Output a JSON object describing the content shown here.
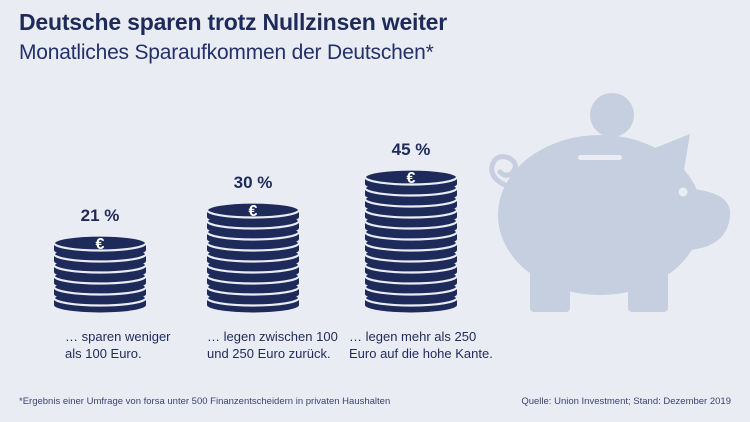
{
  "title": "Deutsche sparen trotz Nullzinsen weiter",
  "subtitle": "Monatliches Sparaufkommen der Deutschen*",
  "coin_symbol": "€",
  "colors": {
    "coin": "#1e2a5a",
    "background": "#e9ecf3",
    "piggy": "#c5cfdf"
  },
  "chart_data": {
    "type": "bar",
    "categories": [
      "… sparen weniger als 100 Euro.",
      "… legen zwischen 100 und 250 Euro zurück.",
      "… legen mehr als 250 Euro auf die hohe Kante."
    ],
    "values": [
      21,
      30,
      45
    ],
    "value_labels": [
      "21 %",
      "30 %",
      "45 %"
    ],
    "caption_lines": [
      [
        "… sparen weniger",
        "als 100 Euro."
      ],
      [
        "… legen zwischen 100",
        "und 250 Euro zurück."
      ],
      [
        "… legen mehr als 250",
        "Euro auf die hohe Kante."
      ]
    ],
    "unit": "%",
    "icon": "piggy-bank-icon"
  },
  "footnote": "*Ergebnis einer Umfrage von forsa unter 500 Finanzentscheidern in privaten Haushalten",
  "source": "Quelle: Union Investment; Stand: Dezember 2019"
}
